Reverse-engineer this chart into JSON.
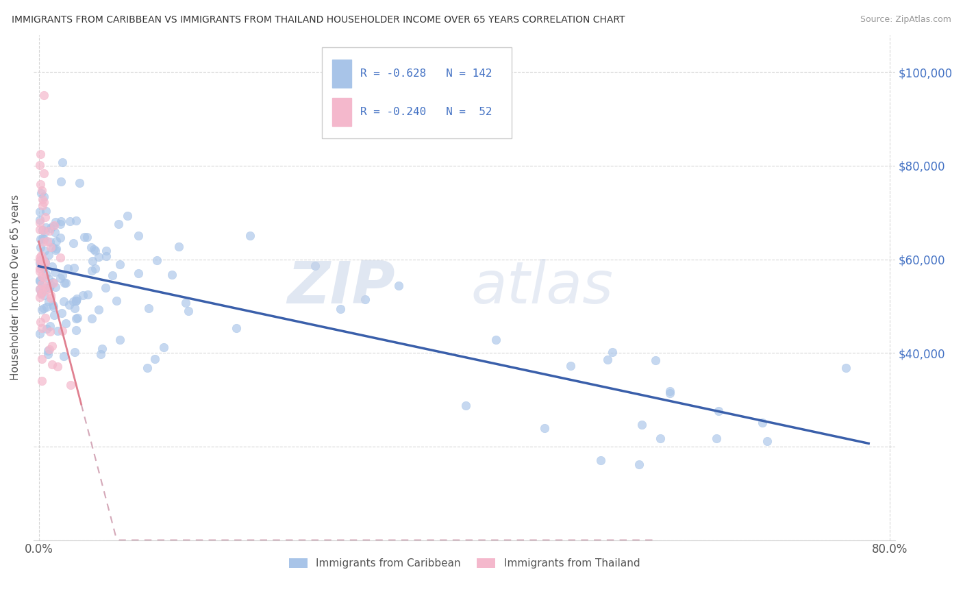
{
  "title": "IMMIGRANTS FROM CARIBBEAN VS IMMIGRANTS FROM THAILAND HOUSEHOLDER INCOME OVER 65 YEARS CORRELATION CHART",
  "source": "Source: ZipAtlas.com",
  "ylabel": "Householder Income Over 65 years",
  "r_caribbean": -0.628,
  "n_caribbean": 142,
  "r_thailand": -0.24,
  "n_thailand": 52,
  "color_caribbean": "#a8c4e8",
  "color_thailand": "#f4b8cc",
  "line_caribbean": "#3a5faa",
  "line_thailand": "#e08090",
  "line_thailand_dashed": "#d4a0b0",
  "watermark_zip": "ZIP",
  "watermark_atlas": "atlas",
  "xlim_min": -0.005,
  "xlim_max": 0.805,
  "ylim_min": 0,
  "ylim_max": 108000,
  "yticks": [
    0,
    20000,
    40000,
    60000,
    80000,
    100000
  ],
  "ytick_right_labels": [
    "",
    "",
    "$40,000",
    "$60,000",
    "$80,000",
    "$100,000"
  ],
  "xtick_positions": [
    0.0,
    0.8
  ],
  "xtick_labels": [
    "0.0%",
    "80.0%"
  ],
  "caribbean_intercept": 58000,
  "caribbean_slope": -45000,
  "thailand_intercept": 60000,
  "thailand_slope": -550000,
  "caribbean_seed": 99,
  "thailand_seed": 77
}
